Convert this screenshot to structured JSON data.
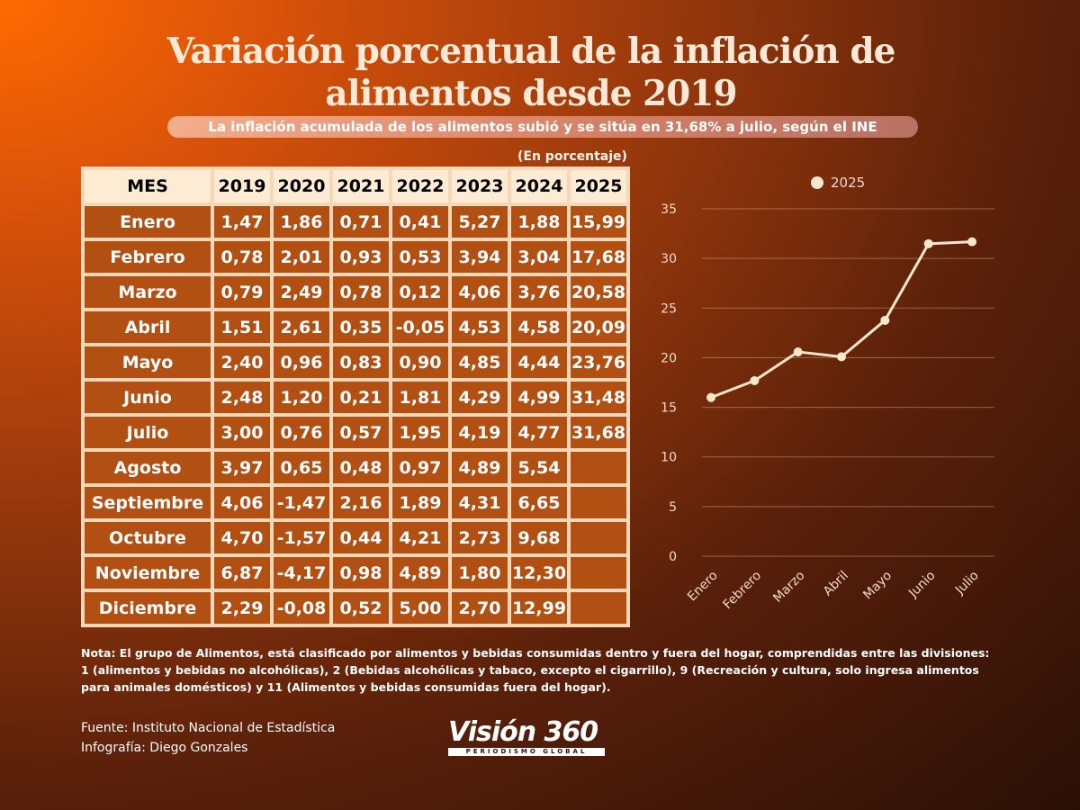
{
  "title_line1": "Variación porcentual de la inflación de",
  "title_line2": "alimentos desde 2019",
  "subtitle": "La inflación acumulada de los alimentos subió y se sitúa en 31,68% a julio, según el INE",
  "unit_note": "(En porcentaje)",
  "table": {
    "headers": [
      "MES",
      "2019",
      "2020",
      "2021",
      "2022",
      "2023",
      "2024",
      "2025"
    ],
    "rows": [
      [
        "Enero",
        "1,47",
        "1,86",
        "0,71",
        "0,41",
        "5,27",
        "1,88",
        "15,99"
      ],
      [
        "Febrero",
        "0,78",
        "2,01",
        "0,93",
        "0,53",
        "3,94",
        "3,04",
        "17,68"
      ],
      [
        "Marzo",
        "0,79",
        "2,49",
        "0,78",
        "0,12",
        "4,06",
        "3,76",
        "20,58"
      ],
      [
        "Abril",
        "1,51",
        "2,61",
        "0,35",
        "-0,05",
        "4,53",
        "4,58",
        "20,09"
      ],
      [
        "Mayo",
        "2,40",
        "0,96",
        "0,83",
        "0,90",
        "4,85",
        "4,44",
        "23,76"
      ],
      [
        "Junio",
        "2,48",
        "1,20",
        "0,21",
        "1,81",
        "4,29",
        "4,99",
        "31,48"
      ],
      [
        "Julio",
        "3,00",
        "0,76",
        "0,57",
        "1,95",
        "4,19",
        "4,77",
        "31,68"
      ],
      [
        "Agosto",
        "3,97",
        "0,65",
        "0,48",
        "0,97",
        "4,89",
        "5,54",
        ""
      ],
      [
        "Septiembre",
        "4,06",
        "-1,47",
        "2,16",
        "1,89",
        "4,31",
        "6,65",
        ""
      ],
      [
        "Octubre",
        "4,70",
        "-1,57",
        "0,44",
        "4,21",
        "2,73",
        "9,68",
        ""
      ],
      [
        "Noviembre",
        "6,87",
        "-4,17",
        "0,98",
        "4,89",
        "1,80",
        "12,30",
        ""
      ],
      [
        "Diciembre",
        "2,29",
        "-0,08",
        "0,52",
        "5,00",
        "2,70",
        "12,99",
        ""
      ]
    ]
  },
  "chart_data": {
    "type": "line",
    "categories": [
      "Enero",
      "Febrero",
      "Marzo",
      "Abril",
      "Mayo",
      "Junio",
      "Julio"
    ],
    "series": [
      {
        "name": "2025",
        "values": [
          15.99,
          17.68,
          20.58,
          20.09,
          23.76,
          31.48,
          31.68
        ]
      }
    ],
    "ylim": [
      0,
      35
    ],
    "yticks": [
      0,
      5,
      10,
      15,
      20,
      25,
      30,
      35
    ],
    "grid": true,
    "legend": "top",
    "line_color": "#fbe8cc"
  },
  "note": "Nota: El grupo de Alimentos, está clasificado por alimentos y bebidas consumidas dentro y fuera del hogar, comprendidas entre las divisiones: 1 (alimentos y bebidas no alcohólicas), 2 (Bebidas alcohólicas y tabaco, excepto el cigarrillo), 9 (Recreación y cultura, solo ingresa alimentos para animales domésticos) y 11 (Alimentos y bebidas consumidas fuera del hogar).",
  "source": "Fuente: Instituto Nacional de Estadística",
  "credit": "Infografía: Diego Gonzales",
  "logo": {
    "name": "Visión 360",
    "tagline": "PERIODISMO GLOBAL"
  }
}
